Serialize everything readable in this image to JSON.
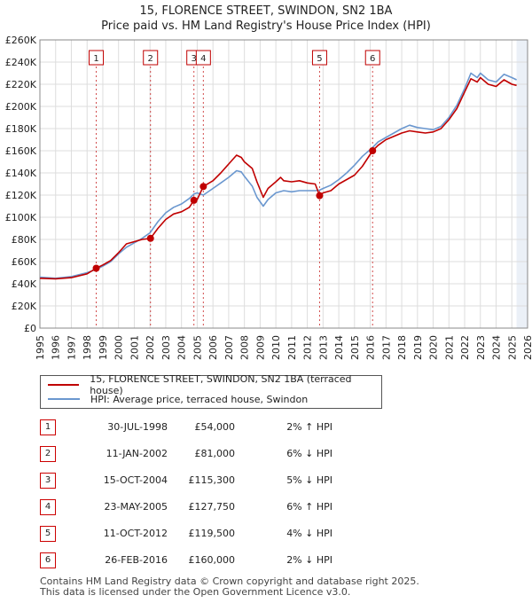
{
  "title": {
    "line1": "15, FLORENCE STREET, SWINDON, SN2 1BA",
    "line2": "Price paid vs. HM Land Registry's House Price Index (HPI)"
  },
  "colors": {
    "property": "#c00000",
    "hpi": "#6a97cf",
    "grid": "#dddddd",
    "marker": "#c00000",
    "shade": "#dde6f2"
  },
  "chart_data": {
    "type": "line",
    "title": "Price paid vs. HM Land Registry's House Price Index (HPI)",
    "xlim": [
      1995,
      2026
    ],
    "ylim": [
      0,
      260000
    ],
    "x_ticks": [
      "1995",
      "1996",
      "1997",
      "1998",
      "1999",
      "2000",
      "2001",
      "2002",
      "2003",
      "2004",
      "2005",
      "2006",
      "2007",
      "2008",
      "2009",
      "2010",
      "2011",
      "2012",
      "2013",
      "2014",
      "2015",
      "2016",
      "2017",
      "2018",
      "2019",
      "2020",
      "2021",
      "2022",
      "2023",
      "2024",
      "2025",
      "2026"
    ],
    "y_ticks": [
      {
        "value": 0,
        "label": "£0"
      },
      {
        "value": 20000,
        "label": "£20K"
      },
      {
        "value": 40000,
        "label": "£40K"
      },
      {
        "value": 60000,
        "label": "£60K"
      },
      {
        "value": 80000,
        "label": "£80K"
      },
      {
        "value": 100000,
        "label": "£100K"
      },
      {
        "value": 120000,
        "label": "£120K"
      },
      {
        "value": 140000,
        "label": "£140K"
      },
      {
        "value": 160000,
        "label": "£160K"
      },
      {
        "value": 180000,
        "label": "£180K"
      },
      {
        "value": 200000,
        "label": "£200K"
      },
      {
        "value": 220000,
        "label": "£220K"
      },
      {
        "value": 240000,
        "label": "£240K"
      },
      {
        "value": 260000,
        "label": "£260K"
      }
    ],
    "future_shade_start": 2025.3,
    "series": [
      {
        "name": "15, FLORENCE STREET, SWINDON, SN2 1BA (terraced house)",
        "color": "#c00000",
        "points": [
          [
            1995.0,
            45000
          ],
          [
            1996.0,
            44500
          ],
          [
            1997.0,
            45500
          ],
          [
            1998.0,
            49000
          ],
          [
            1998.58,
            54000
          ],
          [
            1999.0,
            57000
          ],
          [
            1999.5,
            61000
          ],
          [
            2000.0,
            68000
          ],
          [
            2000.5,
            76000
          ],
          [
            2001.0,
            78000
          ],
          [
            2001.5,
            80000
          ],
          [
            2002.03,
            81000
          ],
          [
            2002.5,
            90000
          ],
          [
            2003.0,
            98000
          ],
          [
            2003.5,
            103000
          ],
          [
            2004.0,
            105000
          ],
          [
            2004.5,
            109000
          ],
          [
            2004.79,
            115300
          ],
          [
            2005.0,
            116000
          ],
          [
            2005.39,
            127750
          ],
          [
            2006.0,
            133000
          ],
          [
            2006.5,
            140000
          ],
          [
            2007.0,
            148000
          ],
          [
            2007.5,
            156000
          ],
          [
            2007.8,
            154000
          ],
          [
            2008.0,
            150000
          ],
          [
            2008.5,
            144000
          ],
          [
            2008.8,
            132000
          ],
          [
            2009.2,
            118000
          ],
          [
            2009.5,
            126000
          ],
          [
            2010.0,
            132000
          ],
          [
            2010.3,
            136000
          ],
          [
            2010.5,
            133000
          ],
          [
            2011.0,
            132000
          ],
          [
            2011.5,
            133000
          ],
          [
            2012.0,
            131000
          ],
          [
            2012.5,
            130000
          ],
          [
            2012.78,
            119500
          ],
          [
            2013.0,
            122000
          ],
          [
            2013.5,
            124000
          ],
          [
            2014.0,
            130000
          ],
          [
            2014.5,
            134000
          ],
          [
            2015.0,
            138000
          ],
          [
            2015.5,
            146000
          ],
          [
            2016.15,
            160000
          ],
          [
            2016.5,
            165000
          ],
          [
            2017.0,
            170000
          ],
          [
            2017.5,
            173000
          ],
          [
            2018.0,
            176000
          ],
          [
            2018.5,
            178000
          ],
          [
            2019.0,
            177000
          ],
          [
            2019.5,
            176000
          ],
          [
            2020.0,
            177000
          ],
          [
            2020.5,
            180000
          ],
          [
            2021.0,
            188000
          ],
          [
            2021.5,
            198000
          ],
          [
            2022.0,
            213000
          ],
          [
            2022.4,
            225000
          ],
          [
            2022.8,
            222000
          ],
          [
            2023.0,
            226000
          ],
          [
            2023.5,
            220000
          ],
          [
            2024.0,
            218000
          ],
          [
            2024.5,
            224000
          ],
          [
            2025.0,
            220000
          ],
          [
            2025.3,
            219000
          ]
        ]
      },
      {
        "name": "HPI: Average price, terraced house, Swindon",
        "color": "#6a97cf",
        "points": [
          [
            1995.0,
            46000
          ],
          [
            1996.0,
            45000
          ],
          [
            1997.0,
            46500
          ],
          [
            1998.0,
            50000
          ],
          [
            1998.58,
            53000
          ],
          [
            1999.0,
            56000
          ],
          [
            1999.5,
            60000
          ],
          [
            2000.0,
            67000
          ],
          [
            2000.5,
            73000
          ],
          [
            2001.0,
            77000
          ],
          [
            2001.5,
            81000
          ],
          [
            2002.0,
            86000
          ],
          [
            2002.5,
            96000
          ],
          [
            2003.0,
            104000
          ],
          [
            2003.5,
            109000
          ],
          [
            2004.0,
            112000
          ],
          [
            2004.5,
            117000
          ],
          [
            2004.79,
            121000
          ],
          [
            2005.0,
            122000
          ],
          [
            2005.39,
            120000
          ],
          [
            2006.0,
            126000
          ],
          [
            2006.5,
            131000
          ],
          [
            2007.0,
            136000
          ],
          [
            2007.5,
            142000
          ],
          [
            2007.8,
            141000
          ],
          [
            2008.0,
            137000
          ],
          [
            2008.5,
            128000
          ],
          [
            2008.8,
            118000
          ],
          [
            2009.2,
            110000
          ],
          [
            2009.5,
            116000
          ],
          [
            2010.0,
            122000
          ],
          [
            2010.5,
            124000
          ],
          [
            2011.0,
            123000
          ],
          [
            2011.5,
            124000
          ],
          [
            2012.0,
            124000
          ],
          [
            2012.5,
            124000
          ],
          [
            2012.78,
            124500
          ],
          [
            2013.0,
            126000
          ],
          [
            2013.5,
            129000
          ],
          [
            2014.0,
            134000
          ],
          [
            2014.5,
            140000
          ],
          [
            2015.0,
            147000
          ],
          [
            2015.5,
            155000
          ],
          [
            2016.15,
            163000
          ],
          [
            2016.5,
            168000
          ],
          [
            2017.0,
            172000
          ],
          [
            2017.5,
            176000
          ],
          [
            2018.0,
            180000
          ],
          [
            2018.5,
            183000
          ],
          [
            2019.0,
            181000
          ],
          [
            2019.5,
            180000
          ],
          [
            2020.0,
            179000
          ],
          [
            2020.5,
            182000
          ],
          [
            2021.0,
            190000
          ],
          [
            2021.5,
            201000
          ],
          [
            2022.0,
            216000
          ],
          [
            2022.4,
            230000
          ],
          [
            2022.8,
            226000
          ],
          [
            2023.0,
            230000
          ],
          [
            2023.5,
            224000
          ],
          [
            2024.0,
            222000
          ],
          [
            2024.5,
            229000
          ],
          [
            2025.0,
            226000
          ],
          [
            2025.3,
            224000
          ]
        ]
      }
    ],
    "sale_markers": [
      {
        "id": "1",
        "x": 1998.58,
        "y": 54000
      },
      {
        "id": "2",
        "x": 2002.03,
        "y": 81000
      },
      {
        "id": "3",
        "x": 2004.79,
        "y": 115300
      },
      {
        "id": "4",
        "x": 2005.39,
        "y": 127750
      },
      {
        "id": "5",
        "x": 2012.78,
        "y": 119500
      },
      {
        "id": "6",
        "x": 2016.15,
        "y": 160000
      }
    ]
  },
  "legend": {
    "property_label": "15, FLORENCE STREET, SWINDON, SN2 1BA (terraced house)",
    "hpi_label": "HPI: Average price, terraced house, Swindon"
  },
  "sales": [
    {
      "num": "1",
      "date": "30-JUL-1998",
      "price": "£54,000",
      "hpi": "2% ↑ HPI"
    },
    {
      "num": "2",
      "date": "11-JAN-2002",
      "price": "£81,000",
      "hpi": "6% ↓ HPI"
    },
    {
      "num": "3",
      "date": "15-OCT-2004",
      "price": "£115,300",
      "hpi": "5% ↓ HPI"
    },
    {
      "num": "4",
      "date": "23-MAY-2005",
      "price": "£127,750",
      "hpi": "6% ↑ HPI"
    },
    {
      "num": "5",
      "date": "11-OCT-2012",
      "price": "£119,500",
      "hpi": "4% ↓ HPI"
    },
    {
      "num": "6",
      "date": "26-FEB-2016",
      "price": "£160,000",
      "hpi": "2% ↓ HPI"
    }
  ],
  "footer": {
    "line1": "Contains HM Land Registry data © Crown copyright and database right 2025.",
    "line2": "This data is licensed under the Open Government Licence v3.0."
  }
}
